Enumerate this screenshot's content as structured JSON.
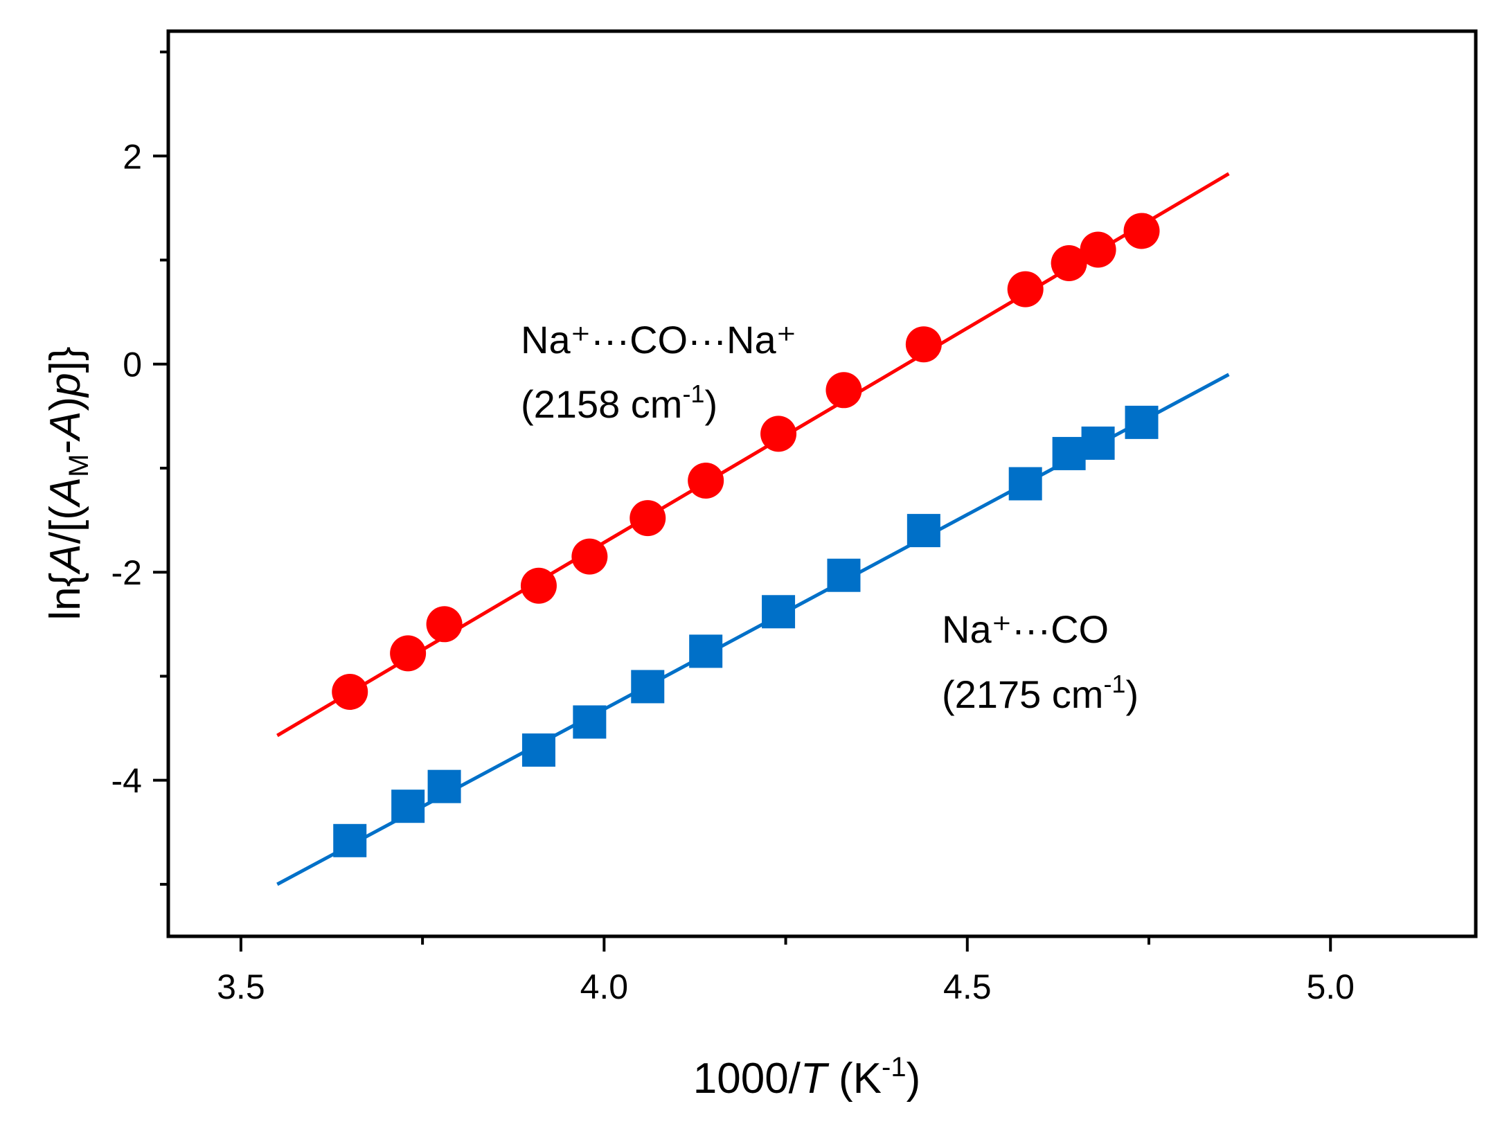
{
  "chart_data": {
    "type": "scatter",
    "title": "",
    "xlabel": {
      "main": "1000/",
      "italic": "T",
      "unit_open": " (K",
      "unit_sup": "-1",
      "unit_close": ")"
    },
    "ylabel": {
      "p1": "ln{",
      "A1": "A",
      "p2": "/[(",
      "A2": "A",
      "sub": "M",
      "p3": "-",
      "A3": "A",
      "p4": ")",
      "P": "p",
      "p5": "]}"
    },
    "xlim": [
      3.4,
      5.2
    ],
    "ylim": [
      -5.5,
      3.2
    ],
    "x_ticks": [
      3.5,
      4.0,
      4.5,
      5.0
    ],
    "x_tick_labels": [
      "3.5",
      "4.0",
      "4.5",
      "5.0"
    ],
    "x_minor_ticks": [
      3.75,
      4.25,
      4.75
    ],
    "y_ticks": [
      2,
      0,
      -2,
      -4
    ],
    "y_tick_labels": [
      "2",
      "0",
      "-2",
      "-4"
    ],
    "y_minor_ticks": [
      3,
      1,
      -1,
      -3,
      -5
    ],
    "series": [
      {
        "name": "Na+···CO···Na+",
        "marker": "circle",
        "color": "#ff0000",
        "x": [
          3.65,
          3.73,
          3.78,
          3.91,
          3.98,
          4.06,
          4.14,
          4.24,
          4.33,
          4.44,
          4.58,
          4.64,
          4.68,
          4.74
        ],
        "y": [
          -3.15,
          -2.78,
          -2.5,
          -2.13,
          -1.85,
          -1.48,
          -1.12,
          -0.67,
          -0.25,
          0.19,
          0.72,
          0.97,
          1.1,
          1.28
        ],
        "fit": {
          "x": [
            3.55,
            4.86
          ],
          "y": [
            -3.57,
            1.83
          ]
        }
      },
      {
        "name": "Na+···CO",
        "marker": "square",
        "color": "#0070c8",
        "x": [
          3.65,
          3.73,
          3.78,
          3.91,
          3.98,
          4.06,
          4.14,
          4.24,
          4.33,
          4.44,
          4.58,
          4.64,
          4.68,
          4.74
        ],
        "y": [
          -4.58,
          -4.25,
          -4.06,
          -3.71,
          -3.44,
          -3.1,
          -2.76,
          -2.38,
          -2.03,
          -1.6,
          -1.15,
          -0.86,
          -0.76,
          -0.56
        ],
        "fit": {
          "x": [
            3.55,
            4.86
          ],
          "y": [
            -5.0,
            -0.1
          ]
        }
      }
    ],
    "annotations": [
      {
        "series": 0,
        "line1": "Na⁺···CO···Na⁺",
        "line2_open": "(2158 cm",
        "line2_sup": "-1",
        "line2_close": ")"
      },
      {
        "series": 1,
        "line1": "Na⁺···CO",
        "line2_open": "(2175 cm",
        "line2_sup": "-1",
        "line2_close": ")"
      }
    ]
  }
}
